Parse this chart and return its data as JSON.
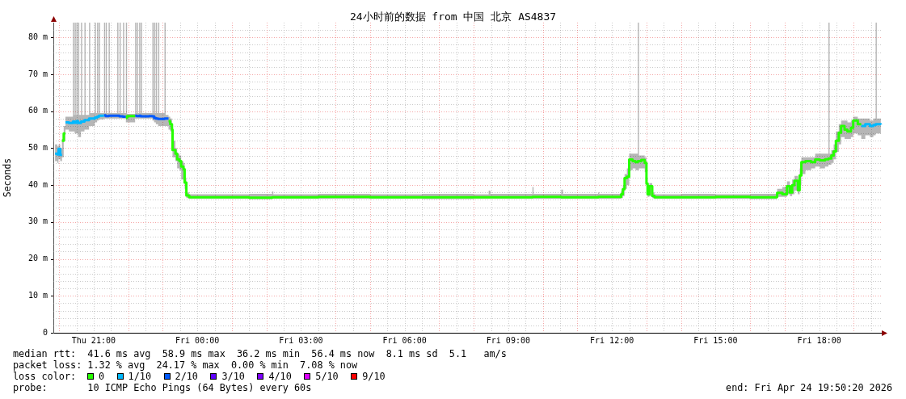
{
  "chart_data": {
    "type": "step",
    "title": "24小时前的数据 from 中国 北京 AS4837",
    "ylabel": "Seconds",
    "legend_title": "loss color:",
    "legend": "bottom left",
    "grid": true,
    "annotations": [
      "median rtt:  41.6 ms avg  58.9 ms max  36.2 ms min  56.4 ms now  8.1 ms sd  5.1   am/s",
      "packet loss: 1.32 % avg  24.17 % max  0.00 % min  7.08 % now",
      "probe:       10 ICMP Echo Pings (64 Bytes) every 60s",
      "end: Fri Apr 24 19:50:20 2026"
    ],
    "xlim": [
      "2026-04-23T19:50",
      "2026-04-24T19:50"
    ],
    "ylim": [
      0,
      84
    ],
    "xticks": [
      {
        "value": "2026-04-23T20:00",
        "label": null
      },
      {
        "value": "2026-04-23T20:30",
        "label": null
      },
      {
        "value": "2026-04-23T21:00",
        "label": "Thu 21:00"
      },
      {
        "value": "2026-04-23T21:30",
        "label": null
      },
      {
        "value": "2026-04-23T22:00",
        "label": null
      },
      {
        "value": "2026-04-23T22:30",
        "label": null
      },
      {
        "value": "2026-04-23T23:00",
        "label": null
      },
      {
        "value": "2026-04-23T23:30",
        "label": null
      },
      {
        "value": "2026-04-24T00:00",
        "label": "Fri 00:00"
      },
      {
        "value": "2026-04-24T00:30",
        "label": null
      },
      {
        "value": "2026-04-24T01:00",
        "label": null
      },
      {
        "value": "2026-04-24T01:30",
        "label": null
      },
      {
        "value": "2026-04-24T02:00",
        "label": null
      },
      {
        "value": "2026-04-24T02:30",
        "label": null
      },
      {
        "value": "2026-04-24T03:00",
        "label": "Fri 03:00"
      },
      {
        "value": "2026-04-24T03:30",
        "label": null
      },
      {
        "value": "2026-04-24T04:00",
        "label": null
      },
      {
        "value": "2026-04-24T04:30",
        "label": null
      },
      {
        "value": "2026-04-24T05:00",
        "label": null
      },
      {
        "value": "2026-04-24T05:30",
        "label": null
      },
      {
        "value": "2026-04-24T06:00",
        "label": "Fri 06:00"
      },
      {
        "value": "2026-04-24T06:30",
        "label": null
      },
      {
        "value": "2026-04-24T07:00",
        "label": null
      },
      {
        "value": "2026-04-24T07:30",
        "label": null
      },
      {
        "value": "2026-04-24T08:00",
        "label": null
      },
      {
        "value": "2026-04-24T08:30",
        "label": null
      },
      {
        "value": "2026-04-24T09:00",
        "label": "Fri 09:00"
      },
      {
        "value": "2026-04-24T09:30",
        "label": null
      },
      {
        "value": "2026-04-24T10:00",
        "label": null
      },
      {
        "value": "2026-04-24T10:30",
        "label": null
      },
      {
        "value": "2026-04-24T11:00",
        "label": null
      },
      {
        "value": "2026-04-24T11:30",
        "label": null
      },
      {
        "value": "2026-04-24T12:00",
        "label": "Fri 12:00"
      },
      {
        "value": "2026-04-24T12:30",
        "label": null
      },
      {
        "value": "2026-04-24T13:00",
        "label": null
      },
      {
        "value": "2026-04-24T13:30",
        "label": null
      },
      {
        "value": "2026-04-24T14:00",
        "label": null
      },
      {
        "value": "2026-04-24T14:30",
        "label": null
      },
      {
        "value": "2026-04-24T15:00",
        "label": "Fri 15:00"
      },
      {
        "value": "2026-04-24T15:30",
        "label": null
      },
      {
        "value": "2026-04-24T16:00",
        "label": null
      },
      {
        "value": "2026-04-24T16:30",
        "label": null
      },
      {
        "value": "2026-04-24T17:00",
        "label": null
      },
      {
        "value": "2026-04-24T17:30",
        "label": null
      },
      {
        "value": "2026-04-24T18:00",
        "label": "Fri 18:00"
      },
      {
        "value": "2026-04-24T18:30",
        "label": null
      },
      {
        "value": "2026-04-24T19:00",
        "label": null
      },
      {
        "value": "2026-04-24T19:30",
        "label": null
      }
    ],
    "yticks": [
      0,
      {
        "value": 2,
        "label": null
      },
      {
        "value": 4,
        "label": null
      },
      {
        "value": 6,
        "label": null
      },
      {
        "value": 8,
        "label": null
      },
      {
        "value": 10,
        "label": "10 m"
      },
      {
        "value": 12,
        "label": null
      },
      {
        "value": 14,
        "label": null
      },
      {
        "value": 16,
        "label": null
      },
      {
        "value": 18,
        "label": null
      },
      {
        "value": 20,
        "label": "20 m"
      },
      {
        "value": 22,
        "label": null
      },
      {
        "value": 24,
        "label": null
      },
      {
        "value": 26,
        "label": null
      },
      {
        "value": 28,
        "label": null
      },
      {
        "value": 30,
        "label": "30 m"
      },
      {
        "value": 32,
        "label": null
      },
      {
        "value": 34,
        "label": null
      },
      {
        "value": 36,
        "label": null
      },
      {
        "value": 38,
        "label": null
      },
      {
        "value": 40,
        "label": "40 m"
      },
      {
        "value": 42,
        "label": null
      },
      {
        "value": 44,
        "label": null
      },
      {
        "value": 46,
        "label": null
      },
      {
        "value": 48,
        "label": null
      },
      {
        "value": 50,
        "label": "50 m"
      },
      {
        "value": 52,
        "label": null
      },
      {
        "value": 54,
        "label": null
      },
      {
        "value": 56,
        "label": null
      },
      {
        "value": 58,
        "label": null
      },
      {
        "value": 60,
        "label": "60 m"
      },
      {
        "value": 62,
        "label": null
      },
      {
        "value": 64,
        "label": null
      },
      {
        "value": 66,
        "label": null
      },
      {
        "value": 68,
        "label": null
      },
      {
        "value": 70,
        "label": "70 m"
      },
      {
        "value": 72,
        "label": null
      },
      {
        "value": 74,
        "label": null
      },
      {
        "value": 76,
        "label": null
      },
      {
        "value": 78,
        "label": null
      },
      {
        "value": 80,
        "label": "80 m"
      },
      {
        "value": 82,
        "label": null
      }
    ],
    "x": [
      "2026-04-23T19:53",
      "2026-04-23T19:57",
      "2026-04-23T19:59",
      "2026-04-23T20:02",
      "2026-04-23T20:05",
      "2026-04-23T20:08",
      "2026-04-23T20:11",
      "2026-04-23T20:17",
      "2026-04-23T20:24",
      "2026-04-23T20:26",
      "2026-04-23T20:27",
      "2026-04-23T20:29",
      "2026-04-23T20:30",
      "2026-04-23T20:32",
      "2026-04-23T20:33",
      "2026-04-23T20:35",
      "2026-04-23T20:38",
      "2026-04-23T20:40",
      "2026-04-23T20:44",
      "2026-04-23T20:46",
      "2026-04-23T20:52",
      "2026-04-23T20:54",
      "2026-04-23T21:02",
      "2026-04-23T21:04",
      "2026-04-23T21:06",
      "2026-04-23T21:08",
      "2026-04-23T21:09",
      "2026-04-23T21:11",
      "2026-04-23T21:18",
      "2026-04-23T21:20",
      "2026-04-23T21:21",
      "2026-04-23T21:23",
      "2026-04-23T21:26",
      "2026-04-23T21:28",
      "2026-04-23T21:41",
      "2026-04-23T21:43",
      "2026-04-23T21:45",
      "2026-04-23T21:47",
      "2026-04-23T21:51",
      "2026-04-23T21:53",
      "2026-04-23T21:56",
      "2026-04-23T21:58",
      "2026-04-23T22:12",
      "2026-04-23T22:14",
      "2026-04-23T22:15",
      "2026-04-23T22:17",
      "2026-04-23T22:19",
      "2026-04-23T22:21",
      "2026-04-23T22:22",
      "2026-04-23T22:24",
      "2026-04-23T22:36",
      "2026-04-23T22:42",
      "2026-04-23T22:44",
      "2026-04-23T22:45",
      "2026-04-23T22:47",
      "2026-04-23T22:48",
      "2026-04-23T22:50",
      "2026-04-23T22:52",
      "2026-04-23T22:54",
      "2026-04-23T23:03",
      "2026-04-23T23:05",
      "2026-04-23T23:10",
      "2026-04-23T23:13",
      "2026-04-23T23:16",
      "2026-04-23T23:17",
      "2026-04-23T23:22",
      "2026-04-23T23:25",
      "2026-04-23T23:29",
      "2026-04-23T23:32",
      "2026-04-23T23:36",
      "2026-04-23T23:38",
      "2026-04-23T23:41",
      "2026-04-23T23:46",
      "2026-04-24T00:24",
      "2026-04-24T01:30",
      "2026-04-24T02:10",
      "2026-04-24T02:12",
      "2026-04-24T03:30",
      "2026-04-24T05:00",
      "2026-04-24T06:30",
      "2026-04-24T08:00",
      "2026-04-24T08:26",
      "2026-04-24T08:29",
      "2026-04-24T09:42",
      "2026-04-24T09:44",
      "2026-04-24T10:32",
      "2026-04-24T10:35",
      "2026-04-24T11:36",
      "2026-04-24T11:38",
      "2026-04-24T12:16",
      "2026-04-24T12:19",
      "2026-04-24T12:22",
      "2026-04-24T12:26",
      "2026-04-24T12:30",
      "2026-04-24T12:36",
      "2026-04-24T12:41",
      "2026-04-24T12:45",
      "2026-04-24T12:47",
      "2026-04-24T12:51",
      "2026-04-24T12:57",
      "2026-04-24T13:00",
      "2026-04-24T13:02",
      "2026-04-24T13:05",
      "2026-04-24T13:10",
      "2026-04-24T13:14",
      "2026-04-24T14:00",
      "2026-04-24T15:00",
      "2026-04-24T16:00",
      "2026-04-24T16:46",
      "2026-04-24T16:47",
      "2026-04-24T16:56",
      "2026-04-24T17:04",
      "2026-04-24T17:09",
      "2026-04-24T17:13",
      "2026-04-24T17:17",
      "2026-04-24T17:23",
      "2026-04-24T17:26",
      "2026-04-24T17:29",
      "2026-04-24T17:36",
      "2026-04-24T17:46",
      "2026-04-24T17:53",
      "2026-04-24T18:01",
      "2026-04-24T18:10",
      "2026-04-24T18:16",
      "2026-04-24T18:18",
      "2026-04-24T18:21",
      "2026-04-24T18:25",
      "2026-04-24T18:29",
      "2026-04-24T18:34",
      "2026-04-24T18:38",
      "2026-04-24T18:44",
      "2026-04-24T18:49",
      "2026-04-24T18:55",
      "2026-04-24T18:59",
      "2026-04-24T19:07",
      "2026-04-24T19:13",
      "2026-04-24T19:20",
      "2026-04-24T19:28",
      "2026-04-24T19:34",
      "2026-04-24T19:38",
      "2026-04-24T19:40",
      "2026-04-24T19:47"
    ],
    "series": [
      {
        "name": "0",
        "color": "#26ff00",
        "values": [
          null,
          null,
          null,
          null,
          52,
          54,
          54,
          null,
          null,
          null,
          null,
          null,
          null,
          null,
          null,
          null,
          null,
          null,
          null,
          null,
          null,
          null,
          null,
          null,
          null,
          null,
          null,
          null,
          null,
          null,
          null,
          null,
          null,
          null,
          null,
          null,
          null,
          null,
          null,
          null,
          58.2,
          58.7,
          58.7,
          null,
          null,
          null,
          null,
          null,
          null,
          null,
          null,
          null,
          null,
          null,
          null,
          null,
          null,
          null,
          null,
          null,
          null,
          57.3,
          56.5,
          55,
          49.5,
          48.5,
          47,
          46.5,
          45,
          44.3,
          40.7,
          37.2,
          36.7,
          36.7,
          36.6,
          36.7,
          36.7,
          36.8,
          36.7,
          36.7,
          36.7,
          36.7,
          36.7,
          36.8,
          36.8,
          36.7,
          36.7,
          36.8,
          36.8,
          37.5,
          38.9,
          41.9,
          42.3,
          46.9,
          46.5,
          46.2,
          46.5,
          46.5,
          46.8,
          46,
          40.4,
          37.5,
          39.7,
          37.1,
          36.7,
          36.7,
          36.8,
          36.7,
          36.8,
          37.9,
          37.5,
          39.7,
          38,
          40,
          41.2,
          38.6,
          42.6,
          46.2,
          46.5,
          46.2,
          46.9,
          46.7,
          47,
          47.2,
          47.2,
          48,
          49.1,
          52,
          54.2,
          56,
          55,
          54.5,
          55.5,
          57.5,
          56.5,
          56.5,
          null,
          null,
          null,
          null,
          null,
          null
        ],
        "lower": [
          46.5,
          46,
          47,
          46.5,
          47.5,
          52,
          55,
          54.5,
          54.5,
          54.5,
          54,
          54,
          54,
          54,
          53,
          53,
          54.5,
          54.5,
          55,
          55,
          56,
          56,
          57,
          57,
          57.5,
          57.5,
          57.8,
          57.8,
          58,
          58,
          58,
          58,
          58,
          58,
          58,
          58,
          58,
          58,
          58,
          58,
          57,
          57,
          58,
          58,
          58,
          58,
          58,
          58,
          58,
          58,
          58,
          57.5,
          57.5,
          57,
          57,
          56.5,
          56.5,
          56,
          56,
          56,
          56,
          55,
          54.5,
          53.5,
          47.5,
          46.5,
          44.5,
          44,
          41.5,
          40.5,
          39,
          36.5,
          36.3,
          36.3,
          36.2,
          36.3,
          36.3,
          36.3,
          36.3,
          36.2,
          36.3,
          36.3,
          36.3,
          36.3,
          36.3,
          36.3,
          36.3,
          36.3,
          36.3,
          36.5,
          37,
          39,
          40,
          44,
          44.5,
          44,
          44,
          44.5,
          44.5,
          43.5,
          37.5,
          36.8,
          37,
          36.5,
          36.3,
          36.3,
          36.3,
          36.2,
          36.3,
          36.8,
          36.8,
          37.5,
          37,
          37.5,
          38.5,
          37.5,
          40,
          43,
          44,
          44.5,
          45,
          44.5,
          45,
          45.5,
          45.5,
          46,
          47,
          49,
          51,
          53,
          52.5,
          52.5,
          53,
          54,
          53.5,
          52.5,
          53.5,
          53,
          53.5,
          54,
          54,
          54
        ],
        "upper": [
          51,
          50.5,
          51,
          50,
          52.5,
          56,
          58.5,
          58.5,
          84,
          59,
          84,
          59,
          84,
          59,
          84,
          59,
          84,
          59,
          84,
          59,
          84,
          59.5,
          84,
          59.5,
          84,
          59.5,
          84,
          59.5,
          84,
          59.5,
          84,
          59.5,
          84,
          59.5,
          84,
          59.5,
          84,
          59.5,
          84,
          59.5,
          84,
          59.3,
          84,
          59.5,
          84,
          59.5,
          84,
          59.5,
          84,
          59.5,
          59.5,
          84,
          59.5,
          84,
          59.5,
          84,
          59.5,
          84,
          59.5,
          84,
          59,
          58.5,
          58,
          56.5,
          52,
          50,
          48.5,
          48,
          46.5,
          46,
          42,
          38,
          37.5,
          37.5,
          37.6,
          38.3,
          37.5,
          37.6,
          37.5,
          37.6,
          37.5,
          38.5,
          37.6,
          39.5,
          37.6,
          38.8,
          37.6,
          38,
          37.6,
          38.5,
          40,
          43,
          44.5,
          48.5,
          48.5,
          48.5,
          84,
          48,
          48,
          47.5,
          42,
          39,
          40.5,
          38,
          37.5,
          37.6,
          37.5,
          37.6,
          37.5,
          39,
          39.5,
          41,
          39.5,
          41.5,
          42.5,
          41,
          44.5,
          47.5,
          47.5,
          47.5,
          48.5,
          48.5,
          48.5,
          84,
          48.5,
          49.5,
          51,
          54.5,
          56.5,
          57.5,
          57.5,
          57,
          57.5,
          58.5,
          58,
          58,
          58,
          57.5,
          58,
          84,
          58,
          58
        ]
      },
      {
        "name": "1/10",
        "color": "#00b8ff",
        "values": [
          48.5,
          48.3,
          49.8,
          48.2,
          48.2,
          null,
          57,
          56.8,
          57.2,
          57.2,
          56.9,
          56.9,
          57.3,
          57.3,
          56.8,
          56.8,
          57.2,
          57.2,
          57.6,
          57.6,
          58,
          58,
          58.3,
          58.3,
          58.5,
          58.5,
          58.8,
          58.8,
          58.8,
          null,
          null,
          null,
          null,
          null,
          null,
          null,
          null,
          null,
          null,
          null,
          null,
          null,
          null,
          null,
          null,
          null,
          null,
          null,
          null,
          null,
          null,
          null,
          null,
          null,
          null,
          null,
          null,
          null,
          null,
          null,
          null,
          null,
          null,
          null,
          null,
          null,
          null,
          null,
          null,
          null,
          null,
          null,
          null,
          null,
          null,
          null,
          null,
          null,
          null,
          null,
          null,
          null,
          null,
          null,
          null,
          null,
          null,
          null,
          null,
          null,
          null,
          null,
          null,
          null,
          null,
          null,
          null,
          null,
          null,
          null,
          null,
          null,
          null,
          null,
          null,
          null,
          null,
          null,
          null,
          null,
          null,
          null,
          null,
          null,
          null,
          null,
          null,
          null,
          null,
          null,
          null,
          null,
          null,
          null,
          null,
          null,
          null,
          null,
          null,
          null,
          null,
          null,
          null,
          null,
          null,
          56,
          56.5,
          56,
          56.3,
          56.5,
          56.5,
          56.4
        ]
      },
      {
        "name": "2/10",
        "color": "#0059ff",
        "values": [
          null,
          null,
          null,
          null,
          null,
          null,
          null,
          null,
          null,
          null,
          null,
          null,
          null,
          null,
          null,
          null,
          null,
          null,
          null,
          null,
          null,
          null,
          null,
          null,
          null,
          null,
          null,
          null,
          58.9,
          58.9,
          58.7,
          58.7,
          58.8,
          58.8,
          58.8,
          58.8,
          58.6,
          58.6,
          58.5,
          58.5,
          58.5,
          null,
          58.8,
          58.8,
          58.7,
          58.7,
          58.8,
          58.8,
          58.6,
          58.6,
          58.7,
          58.6,
          58.6,
          58.2,
          58.2,
          58,
          58,
          57.9,
          57.9,
          58,
          58,
          58,
          null,
          null,
          null,
          null,
          null,
          null,
          null,
          null,
          null,
          null,
          null,
          null,
          null,
          null,
          null,
          null,
          null,
          null,
          null,
          null,
          null,
          null,
          null,
          null,
          null,
          null,
          null,
          null,
          null,
          null,
          null,
          null,
          null,
          null,
          null,
          null,
          null,
          null,
          null,
          null,
          null,
          null,
          null,
          null,
          null,
          null,
          null,
          null,
          null,
          null,
          null,
          null,
          null,
          null,
          null,
          null,
          null,
          null,
          null,
          null,
          null,
          null,
          null,
          null,
          null,
          null,
          null,
          null,
          null,
          null,
          null,
          null,
          null,
          null,
          null,
          null,
          null,
          null,
          null,
          null
        ]
      },
      {
        "name": "3/10",
        "color": "#5e00ff",
        "values": [
          null,
          null,
          null,
          null,
          null,
          null,
          null,
          null,
          null,
          null,
          null,
          null,
          null,
          null,
          null,
          null,
          null,
          null,
          null,
          null,
          null,
          null,
          null,
          null,
          null,
          null,
          null,
          null,
          null,
          null,
          null,
          null,
          null,
          null,
          null,
          null,
          null,
          null,
          null,
          null,
          null,
          null,
          null,
          null,
          null,
          null,
          null,
          null,
          null,
          null,
          null,
          null,
          null,
          null,
          null,
          null,
          null,
          null,
          null,
          null,
          null,
          null,
          null,
          null,
          null,
          null,
          null,
          null,
          null,
          null,
          null,
          null,
          null,
          null,
          null,
          null,
          null,
          null,
          null,
          null,
          null,
          null,
          null,
          null,
          null,
          null,
          null,
          null,
          null,
          null,
          null,
          null,
          null,
          null,
          null,
          null,
          null,
          null,
          null,
          null,
          null,
          null,
          null,
          null,
          null,
          null,
          null,
          null,
          null,
          null,
          null,
          null,
          null,
          null,
          null,
          null,
          null,
          null,
          null,
          null,
          null,
          null,
          null,
          null,
          null,
          null,
          null,
          null,
          null,
          null,
          null,
          null,
          null,
          null,
          null,
          null,
          null,
          null,
          null,
          null,
          null,
          null
        ]
      },
      {
        "name": "4/10",
        "color": "#7e00ff",
        "values": [
          null,
          null,
          null,
          null,
          null,
          null,
          null,
          null,
          null,
          null,
          null,
          null,
          null,
          null,
          null,
          null,
          null,
          null,
          null,
          null,
          null,
          null,
          null,
          null,
          null,
          null,
          null,
          null,
          null,
          null,
          null,
          null,
          null,
          null,
          null,
          null,
          null,
          null,
          null,
          null,
          null,
          null,
          null,
          null,
          null,
          null,
          null,
          null,
          null,
          null,
          null,
          null,
          null,
          null,
          null,
          null,
          null,
          null,
          null,
          null,
          null,
          null,
          null,
          null,
          null,
          null,
          null,
          null,
          null,
          null,
          null,
          null,
          null,
          null,
          null,
          null,
          null,
          null,
          null,
          null,
          null,
          null,
          null,
          null,
          null,
          null,
          null,
          null,
          null,
          null,
          null,
          null,
          null,
          null,
          null,
          null,
          null,
          null,
          null,
          null,
          null,
          null,
          null,
          null,
          null,
          null,
          null,
          null,
          null,
          null,
          null,
          null,
          null,
          null,
          null,
          null,
          null,
          null,
          null,
          null,
          null,
          null,
          null,
          null,
          null,
          null,
          null,
          null,
          null,
          null,
          null,
          null,
          null,
          null,
          null,
          null,
          null,
          null,
          null,
          null,
          null,
          null
        ]
      },
      {
        "name": "5/10",
        "color": "#dd00ff",
        "values": [
          null,
          null,
          null,
          null,
          null,
          null,
          null,
          null,
          null,
          null,
          null,
          null,
          null,
          null,
          null,
          null,
          null,
          null,
          null,
          null,
          null,
          null,
          null,
          null,
          null,
          null,
          null,
          null,
          null,
          null,
          null,
          null,
          null,
          null,
          null,
          null,
          null,
          null,
          null,
          null,
          null,
          null,
          null,
          null,
          null,
          null,
          null,
          null,
          null,
          null,
          null,
          null,
          null,
          null,
          null,
          null,
          null,
          null,
          null,
          null,
          null,
          null,
          null,
          null,
          null,
          null,
          null,
          null,
          null,
          null,
          null,
          null,
          null,
          null,
          null,
          null,
          null,
          null,
          null,
          null,
          null,
          null,
          null,
          null,
          null,
          null,
          null,
          null,
          null,
          null,
          null,
          null,
          null,
          null,
          null,
          null,
          null,
          null,
          null,
          null,
          null,
          null,
          null,
          null,
          null,
          null,
          null,
          null,
          null,
          null,
          null,
          null,
          null,
          null,
          null,
          null,
          null,
          null,
          null,
          null,
          null,
          null,
          null,
          null,
          null,
          null,
          null,
          null,
          null,
          null,
          null,
          null,
          null,
          null,
          null,
          null,
          null,
          null,
          null,
          null,
          null,
          null
        ]
      },
      {
        "name": "9/10",
        "color": "#ff0000",
        "values": [
          null,
          null,
          null,
          null,
          null,
          null,
          null,
          null,
          null,
          null,
          null,
          null,
          null,
          null,
          null,
          null,
          null,
          null,
          null,
          null,
          null,
          null,
          null,
          null,
          null,
          null,
          null,
          null,
          null,
          null,
          null,
          null,
          null,
          null,
          null,
          null,
          null,
          null,
          null,
          null,
          null,
          null,
          null,
          null,
          null,
          null,
          null,
          null,
          null,
          null,
          null,
          null,
          null,
          null,
          null,
          null,
          null,
          null,
          null,
          null,
          null,
          null,
          null,
          null,
          null,
          null,
          null,
          null,
          null,
          null,
          null,
          null,
          null,
          null,
          null,
          null,
          null,
          null,
          null,
          null,
          null,
          null,
          null,
          null,
          null,
          null,
          null,
          null,
          null,
          null,
          null,
          null,
          null,
          null,
          null,
          null,
          null,
          null,
          null,
          null,
          null,
          null,
          null,
          null,
          null,
          null,
          null,
          null,
          null,
          null,
          null,
          null,
          null,
          null,
          null,
          null,
          null,
          null,
          null,
          null,
          null,
          null,
          null,
          null,
          null,
          null,
          null,
          null,
          null,
          null,
          null,
          null,
          null,
          null,
          null,
          null,
          null,
          null,
          null,
          null,
          null,
          null
        ]
      }
    ]
  }
}
